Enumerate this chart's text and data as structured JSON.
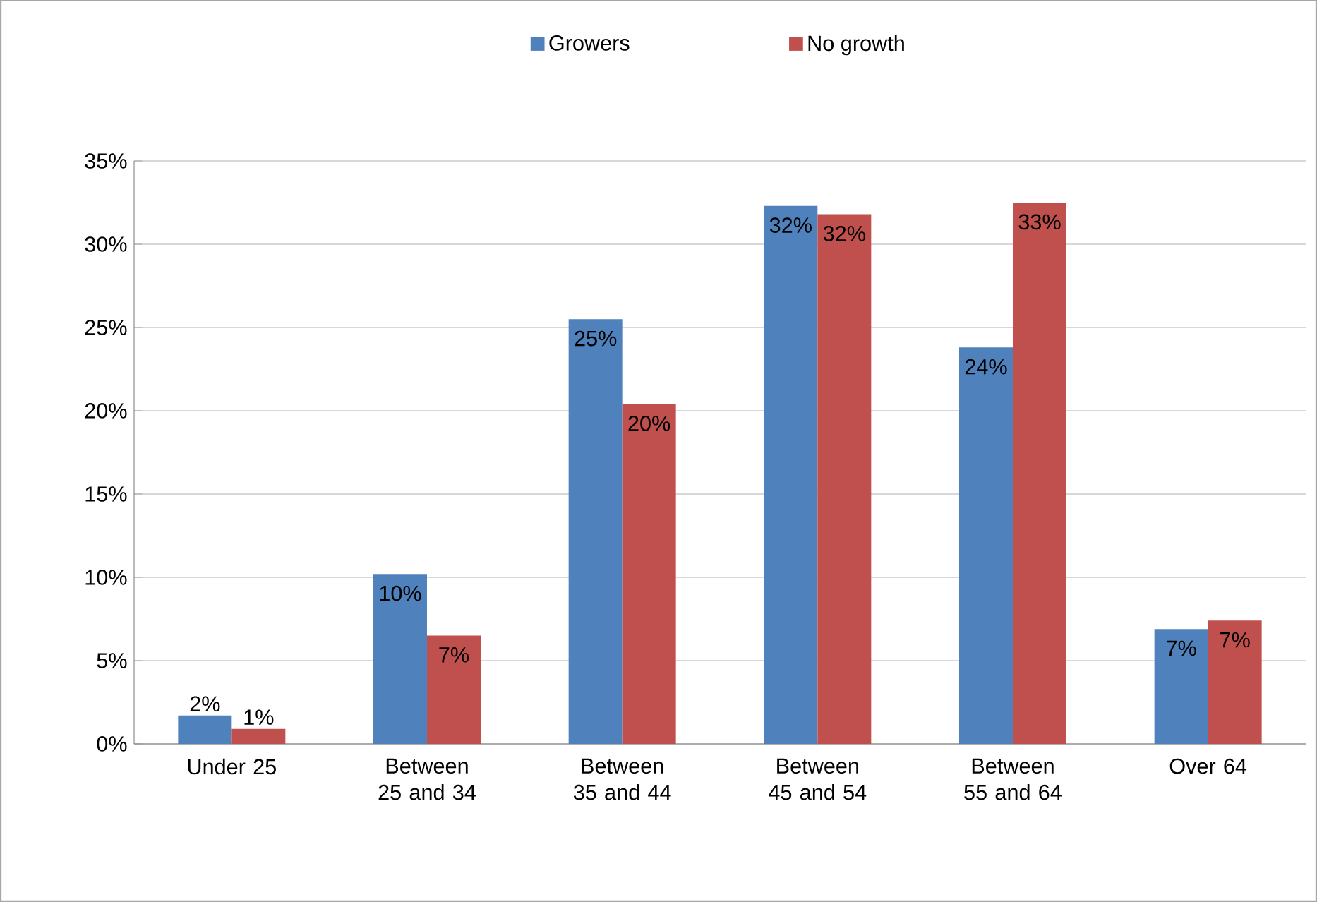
{
  "chart_data": {
    "type": "bar",
    "categories": [
      "Under 25",
      "Between 25 and 34",
      "Between 35 and 44",
      "Between 45 and 54",
      "Between 55 and 64",
      "Over 64"
    ],
    "series": [
      {
        "name": "Growers",
        "color": "#4f81bd",
        "values": [
          1.7,
          10.2,
          25.5,
          32.3,
          23.8,
          6.9
        ],
        "value_labels": [
          "2%",
          "10%",
          "25%",
          "32%",
          "24%",
          "7%"
        ]
      },
      {
        "name": "No growth",
        "color": "#c0504d",
        "values": [
          0.9,
          6.5,
          20.4,
          31.8,
          32.5,
          7.4
        ],
        "value_labels": [
          "1%",
          "7%",
          "20%",
          "32%",
          "33%",
          "7%"
        ]
      }
    ],
    "ylim": [
      0,
      35
    ],
    "yticks": [
      {
        "value": 0,
        "label": "0%"
      },
      {
        "value": 5,
        "label": "5%"
      },
      {
        "value": 10,
        "label": "10%"
      },
      {
        "value": 15,
        "label": "15%"
      },
      {
        "value": 20,
        "label": "20%"
      },
      {
        "value": 25,
        "label": "25%"
      },
      {
        "value": 30,
        "label": "30%"
      },
      {
        "value": 35,
        "label": "35%"
      }
    ],
    "grid": "y",
    "legend": "top"
  }
}
